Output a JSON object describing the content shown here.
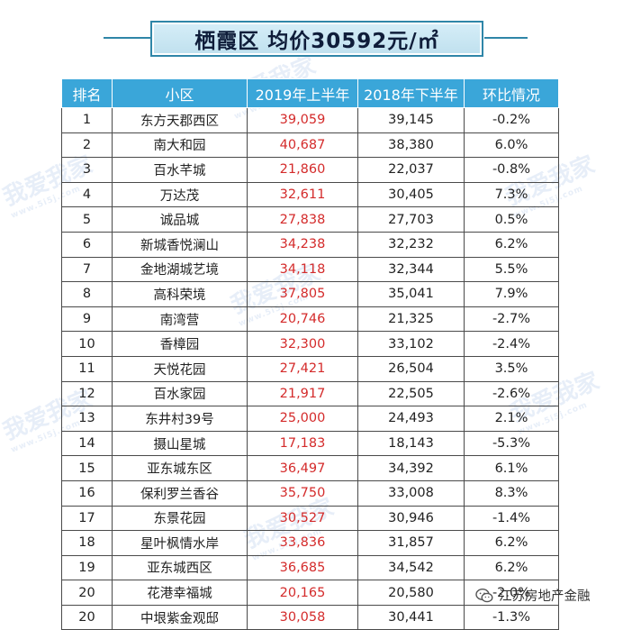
{
  "header": {
    "title": "栖霞区  均价30592元/㎡"
  },
  "table": {
    "columns": [
      "排名",
      "小区",
      "2019年上半年",
      "2018年下半年",
      "环比情况"
    ],
    "rows": [
      {
        "rank": "1",
        "name": "东方天郡西区",
        "h1_2019": "39,059",
        "h2_2018": "39,145",
        "change": "-0.2%"
      },
      {
        "rank": "2",
        "name": "南大和园",
        "h1_2019": "40,687",
        "h2_2018": "38,380",
        "change": "6.0%"
      },
      {
        "rank": "3",
        "name": "百水芊城",
        "h1_2019": "21,860",
        "h2_2018": "22,037",
        "change": "-0.8%"
      },
      {
        "rank": "4",
        "name": "万达茂",
        "h1_2019": "32,611",
        "h2_2018": "30,405",
        "change": "7.3%"
      },
      {
        "rank": "5",
        "name": "诚品城",
        "h1_2019": "27,838",
        "h2_2018": "27,703",
        "change": "0.5%"
      },
      {
        "rank": "6",
        "name": "新城香悦澜山",
        "h1_2019": "34,238",
        "h2_2018": "32,232",
        "change": "6.2%"
      },
      {
        "rank": "7",
        "name": "金地湖城艺境",
        "h1_2019": "34,118",
        "h2_2018": "32,344",
        "change": "5.5%"
      },
      {
        "rank": "8",
        "name": "高科荣境",
        "h1_2019": "37,805",
        "h2_2018": "35,041",
        "change": "7.9%"
      },
      {
        "rank": "9",
        "name": "南湾营",
        "h1_2019": "20,746",
        "h2_2018": "21,325",
        "change": "-2.7%"
      },
      {
        "rank": "10",
        "name": "香樟园",
        "h1_2019": "32,300",
        "h2_2018": "33,102",
        "change": "-2.4%"
      },
      {
        "rank": "11",
        "name": "天悦花园",
        "h1_2019": "27,421",
        "h2_2018": "26,504",
        "change": "3.5%"
      },
      {
        "rank": "12",
        "name": "百水家园",
        "h1_2019": "21,917",
        "h2_2018": "22,505",
        "change": "-2.6%"
      },
      {
        "rank": "13",
        "name": "东井村39号",
        "h1_2019": "25,000",
        "h2_2018": "24,493",
        "change": "2.1%"
      },
      {
        "rank": "14",
        "name": "摄山星城",
        "h1_2019": "17,183",
        "h2_2018": "18,143",
        "change": "-5.3%"
      },
      {
        "rank": "15",
        "name": "亚东城东区",
        "h1_2019": "36,497",
        "h2_2018": "34,392",
        "change": "6.1%"
      },
      {
        "rank": "16",
        "name": "保利罗兰香谷",
        "h1_2019": "35,750",
        "h2_2018": "33,008",
        "change": "8.3%"
      },
      {
        "rank": "17",
        "name": "东景花园",
        "h1_2019": "30,527",
        "h2_2018": "30,946",
        "change": "-1.4%"
      },
      {
        "rank": "18",
        "name": "星叶枫情水岸",
        "h1_2019": "33,836",
        "h2_2018": "31,857",
        "change": "6.2%"
      },
      {
        "rank": "19",
        "name": "亚东城西区",
        "h1_2019": "36,685",
        "h2_2018": "34,542",
        "change": "6.2%"
      },
      {
        "rank": "20",
        "name": "花港幸福城",
        "h1_2019": "20,165",
        "h2_2018": "20,580",
        "change": "-2.0%"
      },
      {
        "rank": "20",
        "name": "中垠紫金观邸",
        "h1_2019": "30,058",
        "h2_2018": "30,441",
        "change": "-1.3%"
      }
    ]
  },
  "watermark": {
    "text": "我爱我家",
    "url": "www.5i5j.com"
  },
  "footer": {
    "account_name": "江苏房地产金融",
    "icon": "wechat-icon"
  },
  "colors": {
    "header_bg": "#3aa6d9",
    "banner_border": "#2f86a8",
    "price_highlight": "#d42b2b"
  }
}
